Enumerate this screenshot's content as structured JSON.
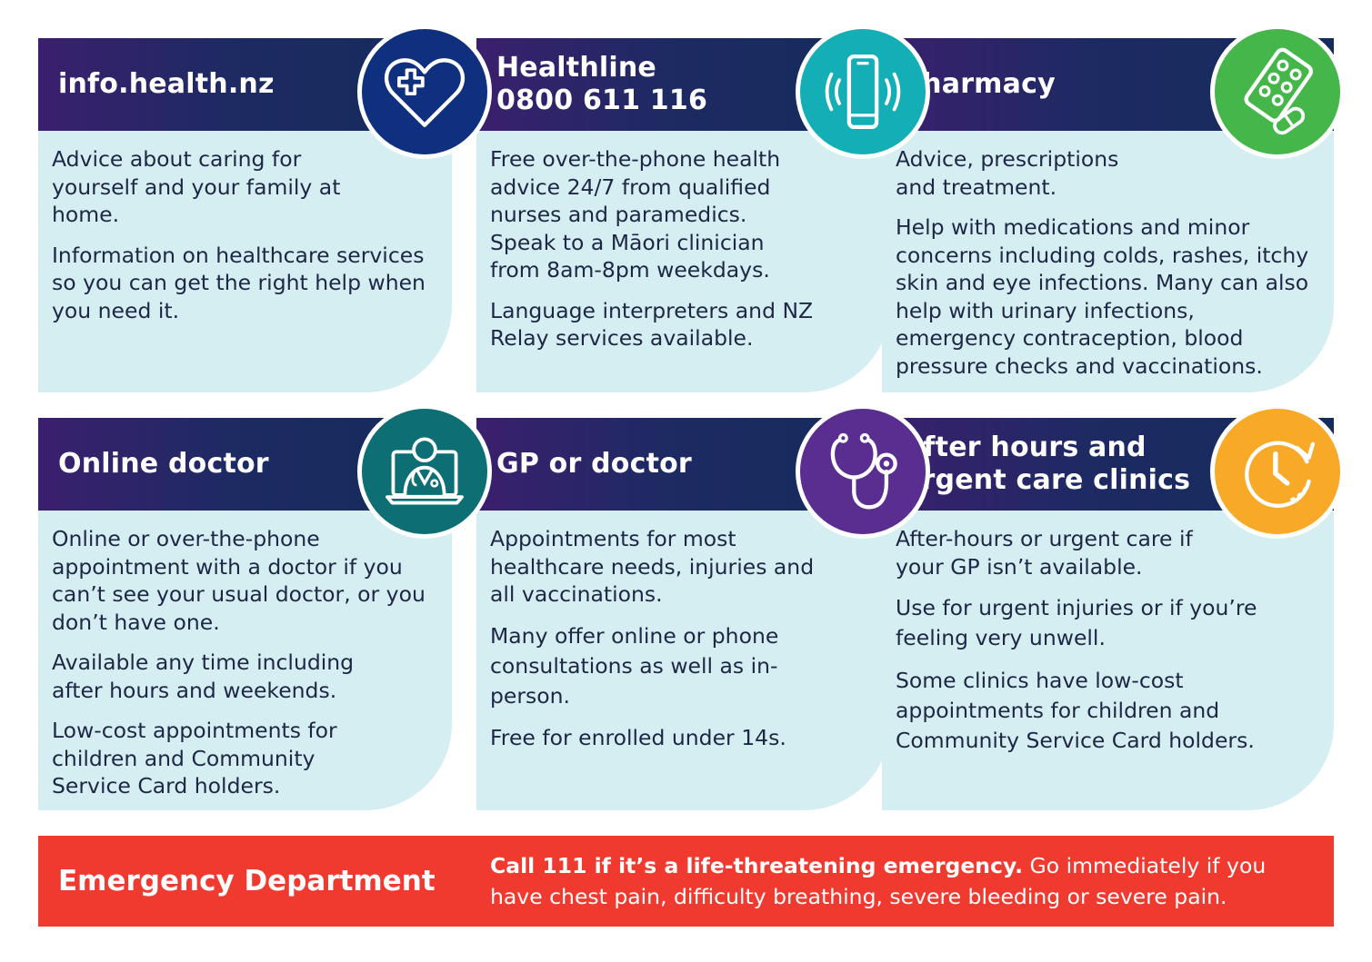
{
  "cards": [
    {
      "title": "info.health.nz",
      "icon": "heart-cross-icon",
      "color": "#0f2f7f",
      "paragraphs": [
        "Advice about caring for yourself and your family at home.",
        "Information on healthcare services so you can get the right help when you need it."
      ]
    },
    {
      "title_line1": "Healthline",
      "title_line2": "0800 611 116",
      "icon": "phone-icon",
      "color": "#14aeb6",
      "paragraphs": [
        "Free over-the-phone health advice 24/7 from qualified nurses and paramedics. Speak to a Māori clinician from 8am-8pm weekdays.",
        "Language interpreters and NZ Relay services available."
      ]
    },
    {
      "title": "Pharmacy",
      "icon": "pills-icon",
      "color": "#45b649",
      "paragraphs": [
        "Advice, prescriptions and treatment.",
        "Help with medications and minor concerns including colds, rashes, itchy skin and eye infections. Many can also help with urinary infections, emergency contraception, blood pressure checks and vaccinations."
      ]
    },
    {
      "title": "Online doctor",
      "icon": "online-doctor-icon",
      "color": "#0d6f73",
      "paragraphs": [
        "Online or over-the-phone appointment with a doctor if you can’t see your usual doctor, or you don’t have one.",
        "Available any time including after hours and weekends.",
        "Low-cost appointments for children and Community Service Card holders."
      ]
    },
    {
      "title": "GP or doctor",
      "icon": "stethoscope-icon",
      "color": "#5a2d91",
      "paragraphs": [
        "Appointments for most healthcare needs, injuries and all vaccinations.",
        "Many offer online or phone consultations as well as in-person.",
        "Free for enrolled under 14s."
      ]
    },
    {
      "title_line1": "After hours and",
      "title_line2": "urgent care clinics",
      "icon": "clock-icon",
      "color": "#f9a928",
      "paragraphs": [
        "After-hours or urgent care if your GP isn’t available.",
        "Use for urgent injuries or if you’re feeling very unwell.",
        "Some clinics have low-cost appointments for children and Community Service Card holders."
      ]
    }
  ],
  "emergency": {
    "label": "Emergency Department",
    "bold": "Call 111 if it’s a life-threatening emergency.",
    "rest": " Go immediately if you have chest pain, difficulty breathing, severe bleeding or severe pain.",
    "color": "#f03a2f"
  }
}
